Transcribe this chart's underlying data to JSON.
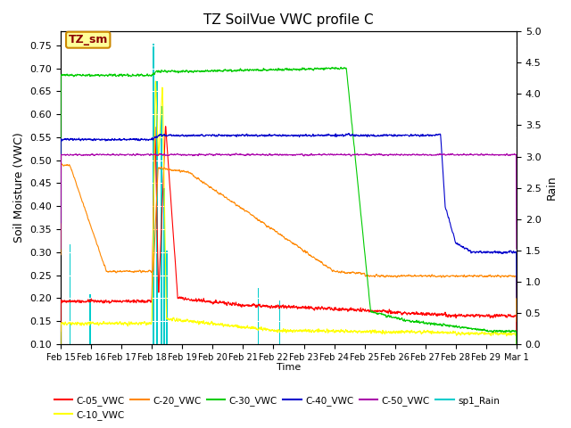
{
  "title": "TZ SoilVue VWC profile C",
  "xlabel": "Time",
  "ylabel_left": "Soil Moisture (VWC)",
  "ylabel_right": "Rain",
  "annotation_text": "TZ_sm",
  "annotation_bg": "#FFFF99",
  "annotation_border": "#CC8800",
  "ylim_left": [
    0.1,
    0.78
  ],
  "ylim_right": [
    0.0,
    5.0
  ],
  "yticks_left": [
    0.1,
    0.15,
    0.2,
    0.25,
    0.3,
    0.35,
    0.4,
    0.45,
    0.5,
    0.55,
    0.6,
    0.65,
    0.7,
    0.75
  ],
  "yticks_right": [
    0.0,
    0.5,
    1.0,
    1.5,
    2.0,
    2.5,
    3.0,
    3.5,
    4.0,
    4.5,
    5.0
  ],
  "xtick_labels": [
    "Feb 15",
    "Feb 16",
    "Feb 17",
    "Feb 18",
    "Feb 19",
    "Feb 20",
    "Feb 21",
    "Feb 22",
    "Feb 23",
    "Feb 24",
    "Feb 25",
    "Feb 26",
    "Feb 27",
    "Feb 28",
    "Feb 29",
    "Mar 1"
  ],
  "bg_color": "#E8E8E8",
  "grid_color": "#FFFFFF",
  "series_colors": {
    "C05": "#FF0000",
    "C10": "#FFFF00",
    "C20": "#FF8800",
    "C30": "#00CC00",
    "C40": "#0000CC",
    "C50": "#AA00AA",
    "rain": "#00CCCC"
  },
  "legend_labels": [
    "C-05_VWC",
    "C-10_VWC",
    "C-20_VWC",
    "C-30_VWC",
    "C-40_VWC",
    "C-50_VWC",
    "sp1_Rain"
  ]
}
